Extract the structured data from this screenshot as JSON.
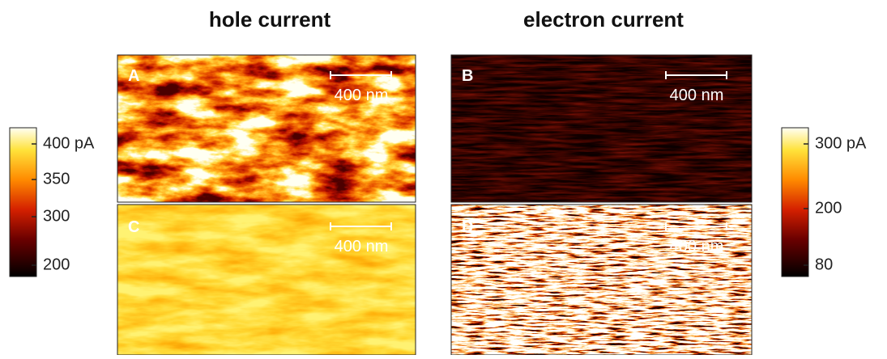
{
  "titles": [
    "hole current",
    "electron current"
  ],
  "panels": [
    {
      "label": "A",
      "scale_bar": "400 nm"
    },
    {
      "label": "B",
      "scale_bar": "400 nm"
    },
    {
      "label": "C",
      "scale_bar": "400 nm"
    },
    {
      "label": "D",
      "scale_bar": "400 nm"
    }
  ],
  "colorbars": [
    {
      "ticks": [
        "400 pA",
        "350",
        "300",
        "200"
      ]
    },
    {
      "ticks": [
        "300 pA",
        "200",
        "80"
      ]
    }
  ]
}
